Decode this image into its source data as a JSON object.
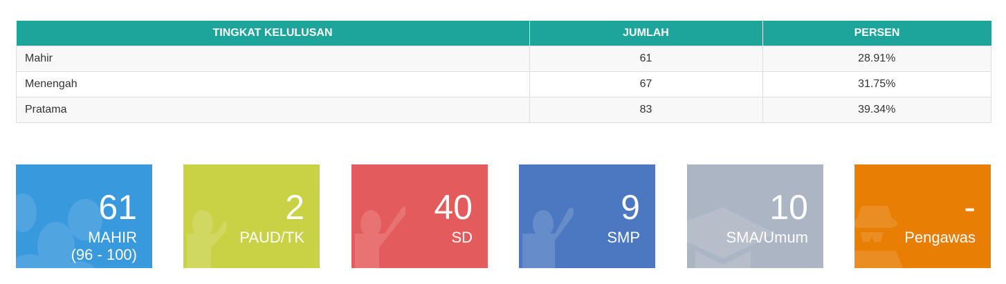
{
  "table": {
    "headers": [
      "TINGKAT KELULUSAN",
      "JUMLAH",
      "PERSEN"
    ],
    "rows": [
      {
        "level": "Mahir",
        "count": "61",
        "percent": "28.91%"
      },
      {
        "level": "Menengah",
        "count": "67",
        "percent": "31.75%"
      },
      {
        "level": "Pratama",
        "count": "83",
        "percent": "39.34%"
      }
    ]
  },
  "cards": [
    {
      "value": "61",
      "label": "MAHIR",
      "sublabel": "(96 - 100)",
      "color": "#3899dd",
      "icon": "users-icon"
    },
    {
      "value": "2",
      "label": "PAUD/TK",
      "color": "#c9d145",
      "icon": "child-icon"
    },
    {
      "value": "40",
      "label": "SD",
      "color": "#e35b5b",
      "icon": "child-icon"
    },
    {
      "value": "9",
      "label": "SMP",
      "color": "#4b78c0",
      "icon": "child-icon"
    },
    {
      "value": "10",
      "label": "SMA/Umum",
      "color": "#acb5c3",
      "icon": "graduation-cap-icon"
    },
    {
      "value": "-",
      "label": "Pengawas",
      "color": "#e87e04",
      "icon": "user-secret-icon"
    }
  ]
}
